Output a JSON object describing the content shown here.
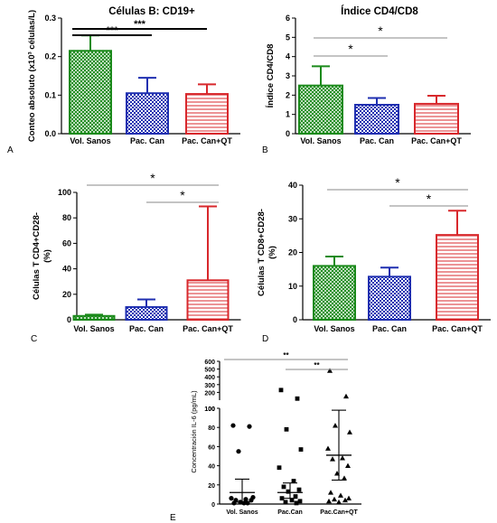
{
  "colors": {
    "green": "#1b8a1b",
    "blue": "#1f2fb0",
    "red": "#d8282c",
    "black": "#000000"
  },
  "chart_data": [
    {
      "panel": "A",
      "type": "bar",
      "title": "Células B: CD19+",
      "ylabel": "Conteo absoluto (x10³ células/L)",
      "yticks": [
        "0.0",
        "0.1",
        "0.2",
        "0.3"
      ],
      "ylim": [
        0,
        0.3
      ],
      "categories": [
        "Vol. Sanos",
        "Pac. Can",
        "Pac. Can+QT"
      ],
      "values": [
        0.215,
        0.105,
        0.103
      ],
      "errors": [
        0.04,
        0.04,
        0.025
      ],
      "significance": [
        {
          "from": 0,
          "to": 1,
          "label": "***"
        },
        {
          "from": 0,
          "to": 2,
          "label": "***"
        }
      ]
    },
    {
      "panel": "B",
      "type": "bar",
      "title": "Índice CD4/CD8",
      "ylabel": "Índice CD4/CD8",
      "yticks": [
        "0",
        "1",
        "2",
        "3",
        "4",
        "5",
        "6"
      ],
      "ylim": [
        0,
        6
      ],
      "categories": [
        "Vol. Sanos",
        "Pac. Can",
        "Pac. Can+QT"
      ],
      "values": [
        2.5,
        1.5,
        1.55
      ],
      "errors": [
        1.0,
        0.35,
        0.42
      ],
      "significance": [
        {
          "from": 0,
          "to": 1,
          "label": "*"
        },
        {
          "from": 0,
          "to": 2,
          "label": "*"
        }
      ]
    },
    {
      "panel": "C",
      "type": "bar",
      "title": "",
      "ylabel": "Células T CD4+CD28- (%)",
      "ylabel_lines": [
        "Células T CD4+CD28-",
        "(%)"
      ],
      "yticks": [
        "0",
        "20",
        "40",
        "60",
        "80",
        "100"
      ],
      "ylim": [
        0,
        100
      ],
      "categories": [
        "Vol. Sanos",
        "Pac. Can",
        "Pac. Can+QT"
      ],
      "values": [
        3,
        10,
        31
      ],
      "errors": [
        1,
        6,
        58
      ],
      "significance": [
        {
          "from": 0,
          "to": 2,
          "label": "*"
        },
        {
          "from": 1,
          "to": 2,
          "label": "*"
        }
      ]
    },
    {
      "panel": "D",
      "type": "bar",
      "title": "",
      "ylabel": "Células T CD8+CD28- (%)",
      "ylabel_lines": [
        "Células T CD8+CD28-",
        "(%)"
      ],
      "yticks": [
        "0",
        "10",
        "20",
        "30",
        "40"
      ],
      "ylim": [
        0,
        40
      ],
      "categories": [
        "Vol. Sanos",
        "Pac. Can",
        "Pac. Can+QT"
      ],
      "values": [
        16,
        12.8,
        25.2
      ],
      "errors": [
        2.8,
        2.7,
        7.2
      ],
      "significance": [
        {
          "from": 0,
          "to": 2,
          "label": "*"
        },
        {
          "from": 1,
          "to": 2,
          "label": "*"
        }
      ]
    },
    {
      "panel": "E",
      "type": "scatter",
      "title": "",
      "ylabel": "Concentración IL-6 (pg/mL)",
      "yticks_top": [
        "100",
        "200",
        "300",
        "400",
        "500",
        "600"
      ],
      "yticks_bottom": [
        "0",
        "20",
        "40",
        "60",
        "80",
        "100"
      ],
      "categories": [
        "Vol. Sanos",
        "Pac.Can",
        "Pac.Can+QT"
      ],
      "groups": [
        {
          "name": "Vol. Sanos",
          "marker": "circle",
          "mean": 12,
          "sem_low": 2,
          "sem_high": 26,
          "points": [
            82,
            81,
            55,
            7,
            6,
            5,
            4,
            4,
            2,
            1,
            1,
            1
          ]
        },
        {
          "name": "Pac.Can",
          "marker": "square",
          "mean": 12,
          "sem_low": 6,
          "sem_high": 22,
          "points": [
            230,
            120,
            78,
            57,
            38,
            24,
            18,
            15,
            13,
            8,
            6,
            4,
            3,
            2,
            1
          ]
        },
        {
          "name": "Pac.Can+QT",
          "marker": "triangle",
          "mean": 51,
          "sem_low": 25,
          "sem_high": 98,
          "points": [
            480,
            150,
            82,
            75,
            58,
            48,
            47,
            40,
            32,
            27,
            12,
            9,
            6,
            5,
            4,
            3,
            2
          ]
        }
      ],
      "significance": [
        {
          "from": 0,
          "to": 2,
          "label": "**"
        },
        {
          "from": 1,
          "to": 2,
          "label": "**"
        }
      ]
    }
  ]
}
